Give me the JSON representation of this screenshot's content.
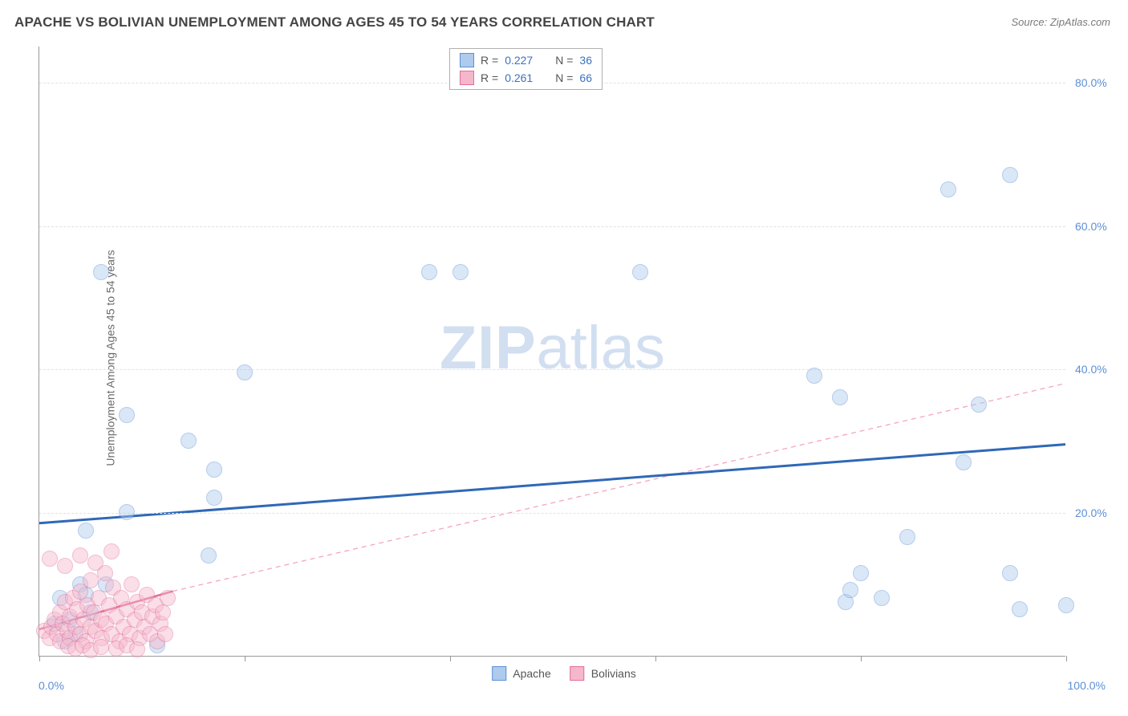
{
  "title": "APACHE VS BOLIVIAN UNEMPLOYMENT AMONG AGES 45 TO 54 YEARS CORRELATION CHART",
  "source": "Source: ZipAtlas.com",
  "y_axis_label": "Unemployment Among Ages 45 to 54 years",
  "watermark": {
    "bold": "ZIP",
    "rest": "atlas"
  },
  "chart": {
    "type": "scatter",
    "xlim": [
      0,
      100
    ],
    "ylim": [
      0,
      85
    ],
    "x_min_label": "0.0%",
    "x_max_label": "100.0%",
    "y_ticks": [
      {
        "v": 20,
        "label": "20.0%"
      },
      {
        "v": 40,
        "label": "40.0%"
      },
      {
        "v": 60,
        "label": "60.0%"
      },
      {
        "v": 80,
        "label": "80.0%"
      }
    ],
    "x_tick_positions": [
      0,
      20,
      40,
      60,
      80,
      100
    ],
    "plot_bg": "#ffffff",
    "grid_color": "#e2e2e2",
    "point_radius": 10,
    "point_opacity": 0.45,
    "series": [
      {
        "name": "Apache",
        "fill": "#aecbed",
        "stroke": "#5b8fd9",
        "trend": {
          "x1": 0,
          "y1": 18.5,
          "x2": 100,
          "y2": 29.5,
          "color": "#2f68b7",
          "width": 3,
          "dash": ""
        },
        "trend_ext": null,
        "points": [
          [
            6,
            53.5
          ],
          [
            8.5,
            33.5
          ],
          [
            8.5,
            20
          ],
          [
            4.5,
            17.5
          ],
          [
            4,
            10
          ],
          [
            4.5,
            8.5
          ],
          [
            6.5,
            10
          ],
          [
            11.5,
            1.5
          ],
          [
            14.5,
            30
          ],
          [
            17,
            22
          ],
          [
            17,
            26
          ],
          [
            20,
            39.5
          ],
          [
            16.5,
            14
          ],
          [
            38,
            53.5
          ],
          [
            41,
            53.5
          ],
          [
            58.5,
            53.5
          ],
          [
            75.5,
            39
          ],
          [
            78,
            36
          ],
          [
            78.5,
            7.5
          ],
          [
            79,
            9.2
          ],
          [
            80,
            11.5
          ],
          [
            82,
            8
          ],
          [
            84.5,
            16.5
          ],
          [
            88.5,
            65
          ],
          [
            90,
            27
          ],
          [
            91.5,
            35
          ],
          [
            94.5,
            11.5
          ],
          [
            94.5,
            67
          ],
          [
            95.5,
            6.5
          ],
          [
            100,
            7
          ],
          [
            2,
            8
          ],
          [
            3,
            5
          ],
          [
            1.5,
            4.5
          ],
          [
            5,
            6
          ],
          [
            3.5,
            3
          ],
          [
            2.5,
            2
          ]
        ]
      },
      {
        "name": "Bolivians",
        "fill": "#f6b7cd",
        "stroke": "#e06f97",
        "trend": {
          "x1": 0,
          "y1": 3.7,
          "x2": 13,
          "y2": 9,
          "color": "#e06f97",
          "width": 2.5,
          "dash": ""
        },
        "trend_ext": {
          "x1": 13,
          "y1": 9,
          "x2": 100,
          "y2": 38,
          "color": "#f2a6bf",
          "width": 1.3,
          "dash": "6,5"
        },
        "points": [
          [
            0.5,
            3.5
          ],
          [
            1,
            2.5
          ],
          [
            1.2,
            4
          ],
          [
            1.5,
            5
          ],
          [
            1.7,
            3
          ],
          [
            2,
            6
          ],
          [
            2,
            2
          ],
          [
            2.3,
            4.5
          ],
          [
            2.5,
            7.5
          ],
          [
            2.7,
            3.5
          ],
          [
            3,
            5.5
          ],
          [
            3,
            2.5
          ],
          [
            3.3,
            8
          ],
          [
            3.5,
            4
          ],
          [
            3.7,
            6.5
          ],
          [
            4,
            3
          ],
          [
            4,
            9
          ],
          [
            4.3,
            5
          ],
          [
            4.5,
            2
          ],
          [
            4.7,
            7
          ],
          [
            5,
            4
          ],
          [
            5,
            10.5
          ],
          [
            5.3,
            6
          ],
          [
            5.5,
            3.5
          ],
          [
            5.8,
            8
          ],
          [
            6,
            5
          ],
          [
            6.1,
            2.5
          ],
          [
            6.4,
            11.5
          ],
          [
            6.5,
            4.5
          ],
          [
            6.8,
            7
          ],
          [
            7,
            3
          ],
          [
            7.2,
            9.5
          ],
          [
            7.5,
            5.5
          ],
          [
            7.8,
            2
          ],
          [
            8,
            8
          ],
          [
            8.2,
            4
          ],
          [
            8.5,
            6.5
          ],
          [
            8.8,
            3
          ],
          [
            9,
            10
          ],
          [
            9.3,
            5
          ],
          [
            9.5,
            7.5
          ],
          [
            9.8,
            2.5
          ],
          [
            10,
            6
          ],
          [
            10.2,
            4
          ],
          [
            10.5,
            8.5
          ],
          [
            10.8,
            3
          ],
          [
            11,
            5.5
          ],
          [
            11.3,
            7
          ],
          [
            11.5,
            2
          ],
          [
            11.8,
            4.5
          ],
          [
            12,
            6
          ],
          [
            12.3,
            3
          ],
          [
            12.5,
            8
          ],
          [
            1,
            13.5
          ],
          [
            2.5,
            12.5
          ],
          [
            4,
            14
          ],
          [
            5.5,
            13
          ],
          [
            7,
            14.5
          ],
          [
            2.8,
            1.3
          ],
          [
            3.5,
            1
          ],
          [
            4.2,
            1.5
          ],
          [
            5,
            0.8
          ],
          [
            6,
            1.2
          ],
          [
            7.5,
            1
          ],
          [
            8.5,
            1.4
          ],
          [
            9.5,
            0.9
          ]
        ]
      }
    ],
    "legend_top": {
      "rows": [
        {
          "swatch_fill": "#aecbed",
          "swatch_stroke": "#5b8fd9",
          "r_label": "R = ",
          "r_val": "0.227",
          "n_label": "N = ",
          "n_val": "36"
        },
        {
          "swatch_fill": "#f6b7cd",
          "swatch_stroke": "#e06f97",
          "r_label": "R = ",
          "r_val": "0.261",
          "n_label": "N = ",
          "n_val": "66"
        }
      ]
    },
    "legend_bottom": [
      {
        "swatch_fill": "#aecbed",
        "swatch_stroke": "#5b8fd9",
        "label": "Apache"
      },
      {
        "swatch_fill": "#f6b7cd",
        "swatch_stroke": "#e06f97",
        "label": "Bolivians"
      }
    ]
  }
}
